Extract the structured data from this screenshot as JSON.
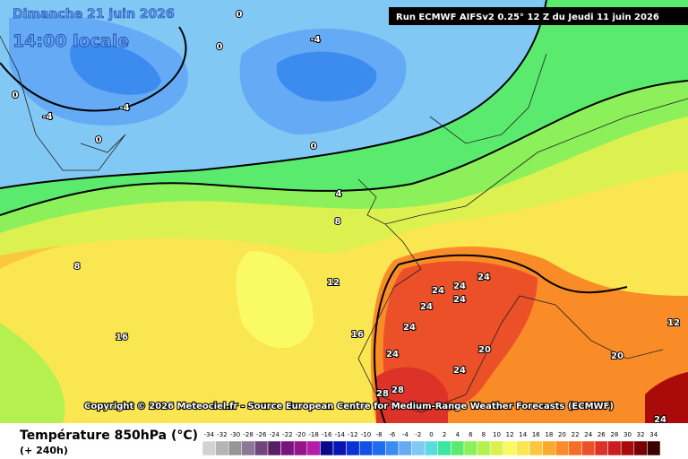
{
  "header": {
    "date": "Dimanche 21 juin 2026",
    "time": "14:00 locale",
    "run": "Run ECMWF AIFSv2 0.25° 12 Z du Jeudi 11 juin 2026"
  },
  "copyright": "Copyright © 2026 Meteociel.fr - Source European Centre for Medium-Range Weather Forecasts (ECMWF)",
  "legend": {
    "title": "Température 850hPa (°C)",
    "subtitle": "(+ 240h)",
    "items": [
      {
        "value": -34,
        "color": "#d2d2d2"
      },
      {
        "value": -32,
        "color": "#b4b4b4"
      },
      {
        "value": -30,
        "color": "#969696"
      },
      {
        "value": -28,
        "color": "#8c7896"
      },
      {
        "value": -26,
        "color": "#6e4678"
      },
      {
        "value": -24,
        "color": "#5a1e64"
      },
      {
        "value": -22,
        "color": "#78147d"
      },
      {
        "value": -20,
        "color": "#96148c"
      },
      {
        "value": -18,
        "color": "#b41eaa"
      },
      {
        "value": -16,
        "color": "#0a0a8c"
      },
      {
        "value": -14,
        "color": "#0a14b4"
      },
      {
        "value": -12,
        "color": "#0a32d2"
      },
      {
        "value": -10,
        "color": "#1450e6"
      },
      {
        "value": -8,
        "color": "#1e6ef0"
      },
      {
        "value": -6,
        "color": "#3c8cf0"
      },
      {
        "value": -4,
        "color": "#64aaf5"
      },
      {
        "value": -2,
        "color": "#82c8f5"
      },
      {
        "value": 0,
        "color": "#5adcdc"
      },
      {
        "value": 2,
        "color": "#3ce6a0"
      },
      {
        "value": 4,
        "color": "#5aeb6e"
      },
      {
        "value": 6,
        "color": "#8cf05a"
      },
      {
        "value": 8,
        "color": "#b4f050"
      },
      {
        "value": 10,
        "color": "#dcf050"
      },
      {
        "value": 12,
        "color": "#fafa64"
      },
      {
        "value": 14,
        "color": "#fae650"
      },
      {
        "value": 16,
        "color": "#fac83c"
      },
      {
        "value": 18,
        "color": "#faaa28"
      },
      {
        "value": 20,
        "color": "#fa8c28"
      },
      {
        "value": 22,
        "color": "#f56e28"
      },
      {
        "value": 24,
        "color": "#eb5028"
      },
      {
        "value": 26,
        "color": "#dc3228"
      },
      {
        "value": 28,
        "color": "#c81e1e"
      },
      {
        "value": 30,
        "color": "#aa0a0a"
      },
      {
        "value": 32,
        "color": "#780000"
      },
      {
        "value": 34,
        "color": "#3c0000"
      }
    ]
  },
  "map": {
    "contour_labels": [
      0,
      0,
      0,
      0,
      0,
      -4,
      -4,
      -4,
      4,
      8,
      8,
      12,
      12,
      16,
      16,
      20,
      20,
      24,
      24,
      24,
      24,
      24,
      24,
      24,
      24,
      28,
      28,
      24
    ]
  }
}
